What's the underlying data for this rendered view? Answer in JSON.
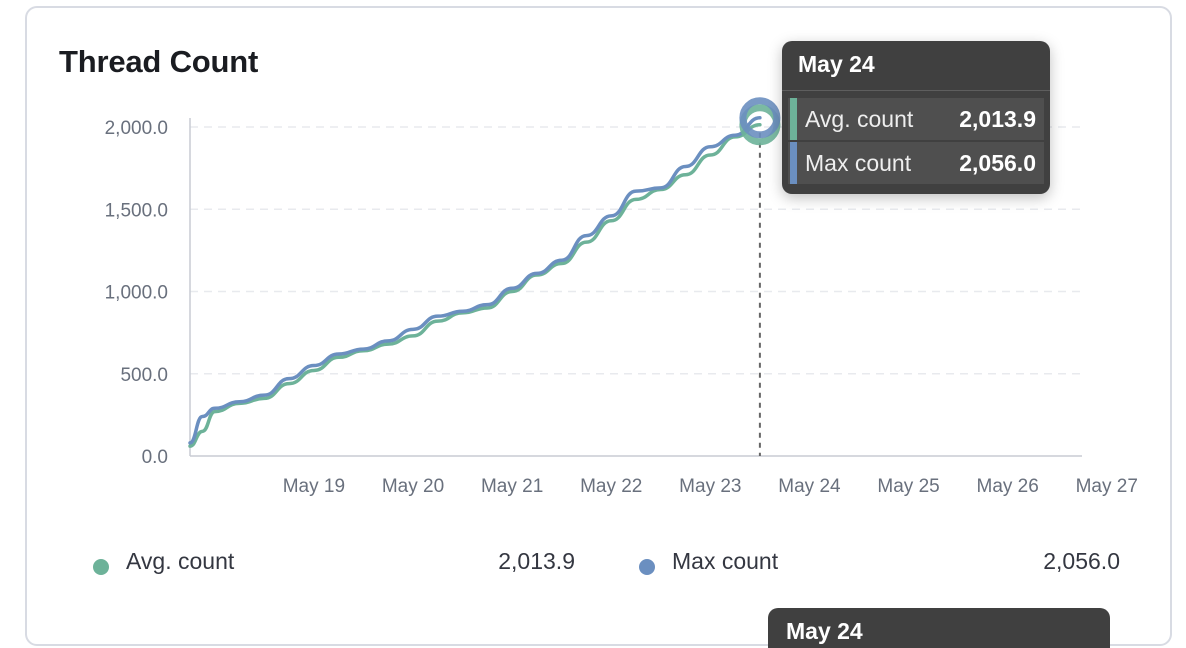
{
  "title": "Thread Count",
  "colors": {
    "avg": "#6db299",
    "max": "#6b8fc0",
    "grid": "#e8eaee",
    "axis": "#c8ccd3"
  },
  "chart_data": {
    "type": "line",
    "title": "Thread Count",
    "x_ticks": [
      "May 19",
      "May 20",
      "May 21",
      "May 22",
      "May 23",
      "May 24",
      "May 25",
      "May 26",
      "May 27"
    ],
    "y_ticks": [
      "0.0",
      "500.0",
      "1,000.0",
      "1,500.0",
      "2,000.0"
    ],
    "ylim": [
      0,
      2000
    ],
    "xlim": [
      "May 18 06:00",
      "May 27 06:00"
    ],
    "grid": "horizontal dashed",
    "legend_position": "bottom",
    "x": [
      "May 18 06:00",
      "May 18 09:00",
      "May 18 12:00",
      "May 18 18:00",
      "May 19 00:00",
      "May 19 06:00",
      "May 19 12:00",
      "May 19 18:00",
      "May 20 00:00",
      "May 20 06:00",
      "May 20 12:00",
      "May 20 18:00",
      "May 21 00:00",
      "May 21 06:00",
      "May 21 12:00",
      "May 21 18:00",
      "May 22 00:00",
      "May 22 06:00",
      "May 22 12:00",
      "May 22 18:00",
      "May 23 00:00",
      "May 23 06:00",
      "May 23 12:00",
      "May 23 18:00",
      "May 24 00:00"
    ],
    "series": [
      {
        "name": "Avg. count",
        "values": [
          60,
          150,
          270,
          320,
          350,
          440,
          520,
          600,
          640,
          680,
          730,
          820,
          870,
          900,
          1000,
          1100,
          1170,
          1300,
          1430,
          1560,
          1620,
          1710,
          1830,
          1940,
          2013.9
        ]
      },
      {
        "name": "Max count",
        "values": [
          80,
          240,
          290,
          330,
          370,
          470,
          550,
          620,
          650,
          700,
          770,
          850,
          880,
          920,
          1020,
          1110,
          1190,
          1340,
          1460,
          1610,
          1630,
          1760,
          1880,
          1950,
          2056.0
        ]
      }
    ]
  },
  "legend": [
    {
      "label": "Avg. count",
      "value": "2,013.9"
    },
    {
      "label": "Max count",
      "value": "2,056.0"
    }
  ],
  "tooltip": {
    "header": "May 24",
    "rows": [
      {
        "label": "Avg. count",
        "value": "2,013.9"
      },
      {
        "label": "Max count",
        "value": "2,056.0"
      }
    ]
  },
  "tooltip_secondary": {
    "header": "May 24"
  }
}
